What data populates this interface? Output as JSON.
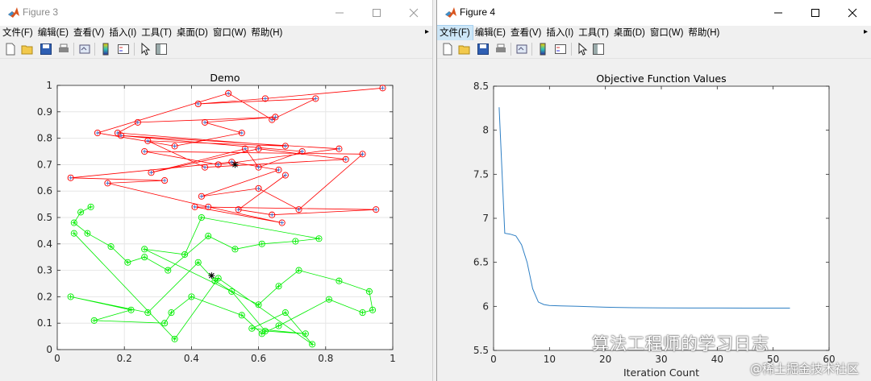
{
  "figure3": {
    "title": "Figure 3",
    "menu": [
      "文件(F)",
      "编辑(E)",
      "查看(V)",
      "插入(I)",
      "工具(T)",
      "桌面(D)",
      "窗口(W)",
      "帮助(H)"
    ],
    "menu_overflow": "▸",
    "toolbar_icons": [
      "new-figure-icon",
      "open-file-icon",
      "save-icon",
      "print-icon",
      "link-plot-icon",
      "colorbar-icon",
      "legend-icon",
      "edit-plot-icon",
      "property-inspector-icon"
    ]
  },
  "figure4": {
    "title": "Figure 4",
    "menu": [
      "文件(F)",
      "编辑(E)",
      "查看(V)",
      "插入(I)",
      "工具(T)",
      "桌面(D)",
      "窗口(W)",
      "帮助(H)"
    ],
    "active_menu": 0,
    "menu_overflow": "▸",
    "toolbar_icons": [
      "new-figure-icon",
      "open-file-icon",
      "save-icon",
      "print-icon",
      "link-plot-icon",
      "colorbar-icon",
      "legend-icon",
      "edit-plot-icon",
      "property-inspector-icon"
    ]
  },
  "colors": {
    "red_cluster": "#ff0000",
    "green_cluster": "#00ee00",
    "marker_circle": "#3b6fd0",
    "line_series": "#2e7fc4",
    "axes_bg": "#ffffff",
    "grid": "#e6e6e6"
  },
  "chart_data": [
    {
      "type": "scatter",
      "title": "Demo",
      "xlabel": "",
      "ylabel": "",
      "xlim": [
        0,
        1
      ],
      "ylim": [
        0,
        1
      ],
      "xticks": [
        "0",
        "0.2",
        "0.4",
        "0.6",
        "0.8",
        "1"
      ],
      "yticks": [
        "0",
        "0.1",
        "0.2",
        "0.3",
        "0.4",
        "0.5",
        "0.6",
        "0.7",
        "0.8",
        "0.9",
        "1"
      ],
      "grid": true,
      "series": [
        {
          "color": "#ff0000",
          "centroid": [
            0.53,
            0.7
          ],
          "x": [
            0.97,
            0.62,
            0.42,
            0.77,
            0.64,
            0.51,
            0.12,
            0.35,
            0.55,
            0.44,
            0.65,
            0.24,
            0.18,
            0.68,
            0.27,
            0.44,
            0.86,
            0.6,
            0.28,
            0.56,
            0.6,
            0.73,
            0.19,
            0.84,
            0.48,
            0.26,
            0.91,
            0.72,
            0.6,
            0.43,
            0.66,
            0.52,
            0.04,
            0.32,
            0.15,
            0.45,
            0.67,
            0.41,
            0.95,
            0.64,
            0.54,
            0.68
          ],
          "y": [
            0.99,
            0.95,
            0.93,
            0.95,
            0.87,
            0.97,
            0.82,
            0.77,
            0.82,
            0.86,
            0.88,
            0.86,
            0.82,
            0.77,
            0.79,
            0.69,
            0.72,
            0.76,
            0.67,
            0.76,
            0.69,
            0.75,
            0.81,
            0.76,
            0.7,
            0.75,
            0.74,
            0.53,
            0.61,
            0.58,
            0.68,
            0.71,
            0.65,
            0.64,
            0.63,
            0.54,
            0.48,
            0.54,
            0.53,
            0.51,
            0.53,
            0.66
          ]
        },
        {
          "color": "#00ee00",
          "centroid": [
            0.46,
            0.28
          ],
          "x": [
            0.1,
            0.07,
            0.05,
            0.09,
            0.16,
            0.21,
            0.26,
            0.33,
            0.45,
            0.53,
            0.61,
            0.71,
            0.78,
            0.43,
            0.38,
            0.26,
            0.6,
            0.66,
            0.72,
            0.84,
            0.93,
            0.94,
            0.91,
            0.81,
            0.66,
            0.61,
            0.55,
            0.4,
            0.34,
            0.32,
            0.11,
            0.22,
            0.04,
            0.27,
            0.42,
            0.47,
            0.52,
            0.62,
            0.74,
            0.58,
            0.68,
            0.76,
            0.48,
            0.35,
            0.05
          ],
          "y": [
            0.54,
            0.52,
            0.48,
            0.44,
            0.39,
            0.33,
            0.35,
            0.3,
            0.43,
            0.38,
            0.4,
            0.41,
            0.42,
            0.5,
            0.36,
            0.38,
            0.17,
            0.24,
            0.3,
            0.26,
            0.22,
            0.15,
            0.14,
            0.19,
            0.09,
            0.06,
            0.13,
            0.2,
            0.14,
            0.1,
            0.11,
            0.15,
            0.2,
            0.14,
            0.33,
            0.26,
            0.22,
            0.07,
            0.06,
            0.08,
            0.14,
            0.02,
            0.27,
            0.04,
            0.44
          ]
        }
      ]
    },
    {
      "type": "line",
      "title": "Objective Function Values",
      "xlabel": "Iteration Count",
      "ylabel": "",
      "xlim": [
        0,
        60
      ],
      "ylim": [
        5.5,
        8.5
      ],
      "xticks": [
        "0",
        "10",
        "20",
        "30",
        "40",
        "50",
        "60"
      ],
      "yticks": [
        "5.5",
        "6",
        "6.5",
        "7",
        "7.5",
        "8",
        "8.5"
      ],
      "grid": false,
      "x": [
        1,
        2,
        3,
        4,
        5,
        6,
        7,
        8,
        9,
        10,
        12,
        15,
        20,
        25,
        30,
        35,
        40,
        45,
        50,
        53
      ],
      "y": [
        8.26,
        6.83,
        6.82,
        6.8,
        6.7,
        6.5,
        6.2,
        6.05,
        6.02,
        6.01,
        6.005,
        6.0,
        5.99,
        5.985,
        5.982,
        5.981,
        5.981,
        5.98,
        5.98,
        5.98
      ]
    }
  ],
  "watermark": {
    "line1": "算法工程师的学习日志",
    "line2": "@稀土掘金技术社区"
  }
}
